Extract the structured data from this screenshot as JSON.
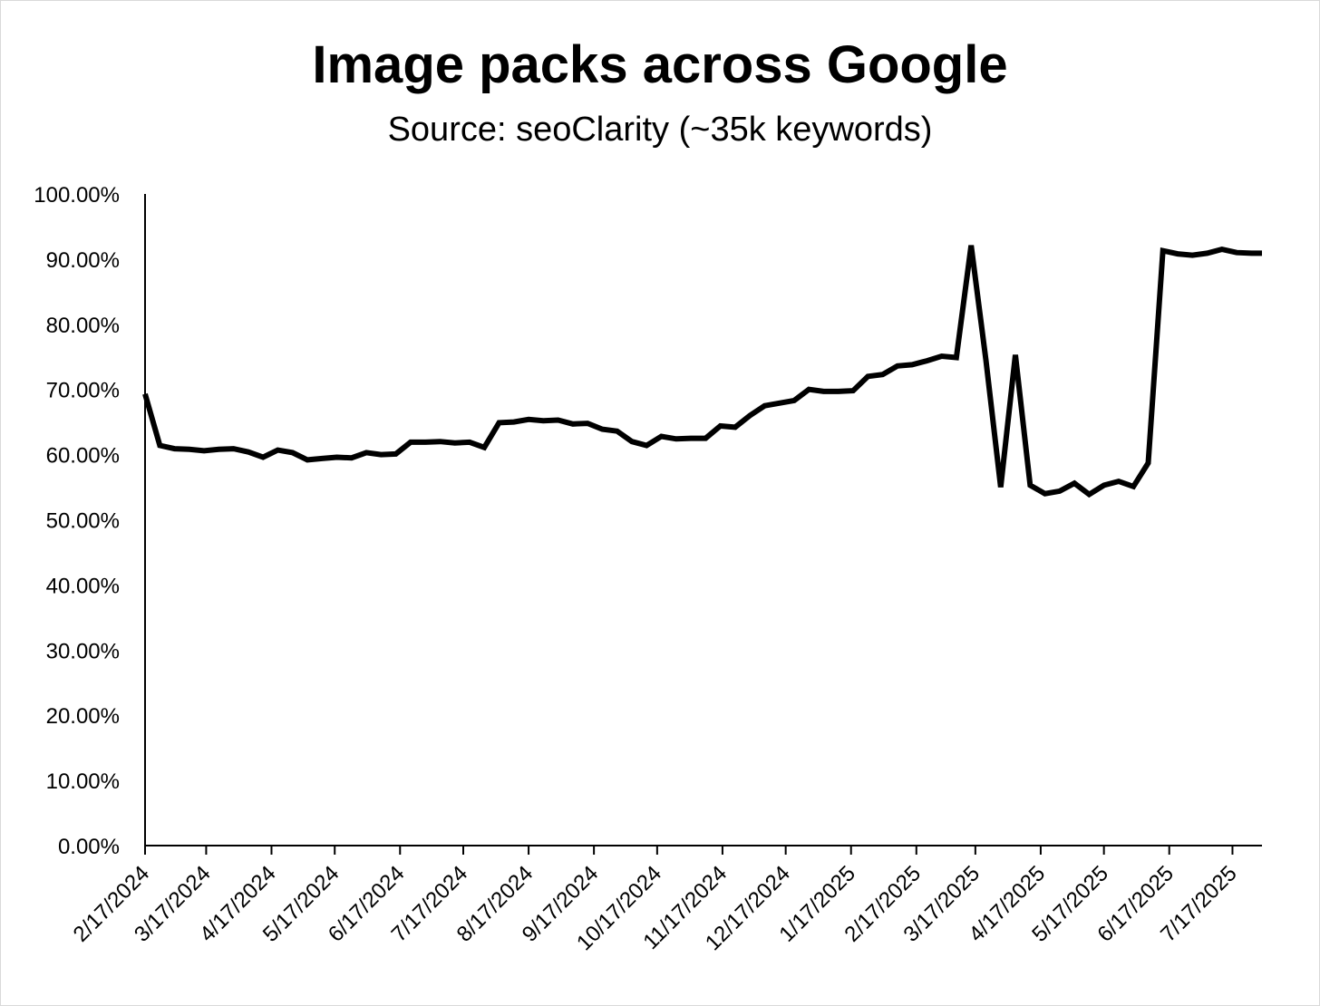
{
  "chart_data": {
    "type": "line",
    "title": "Image packs across Google",
    "subtitle": "Source: seoClarity (~35k keywords)",
    "xlabel": "",
    "ylabel": "",
    "ylim": [
      0,
      1
    ],
    "y_ticks": [
      0,
      0.1,
      0.2,
      0.3,
      0.4,
      0.5,
      0.6,
      0.7,
      0.8,
      0.9,
      1.0
    ],
    "y_tick_labels": [
      "0.00%",
      "10.00%",
      "20.00%",
      "30.00%",
      "40.00%",
      "50.00%",
      "60.00%",
      "70.00%",
      "80.00%",
      "90.00%",
      "100.00%"
    ],
    "x_range": [
      "2024-02-17",
      "2025-07-31"
    ],
    "x_ticks": [
      "2024-02-17",
      "2024-03-17",
      "2024-04-17",
      "2024-05-17",
      "2024-06-17",
      "2024-07-17",
      "2024-08-17",
      "2024-09-17",
      "2024-10-17",
      "2024-11-17",
      "2024-12-17",
      "2025-01-17",
      "2025-02-17",
      "2025-03-17",
      "2025-04-17",
      "2025-05-17",
      "2025-06-17",
      "2025-07-17"
    ],
    "x_tick_labels": [
      "2/17/2024",
      "3/17/2024",
      "4/17/2024",
      "5/17/2024",
      "6/17/2024",
      "7/17/2024",
      "8/17/2024",
      "9/17/2024",
      "10/17/2024",
      "11/17/2024",
      "12/17/2024",
      "1/17/2025",
      "2/17/2025",
      "3/17/2025",
      "4/17/2025",
      "5/17/2025",
      "6/17/2025",
      "7/17/2025"
    ],
    "grid": false,
    "legend": "none",
    "line_color": "#000000",
    "series": [
      {
        "x": [
          "2024-02-17",
          "2024-02-24",
          "2024-03-02",
          "2024-03-09",
          "2024-03-16",
          "2024-03-23",
          "2024-03-30",
          "2024-04-06",
          "2024-04-13",
          "2024-04-20",
          "2024-04-27",
          "2024-05-04",
          "2024-05-11",
          "2024-05-18",
          "2024-05-25",
          "2024-06-01",
          "2024-06-08",
          "2024-06-15",
          "2024-06-22",
          "2024-06-29",
          "2024-07-06",
          "2024-07-13",
          "2024-07-20",
          "2024-07-27",
          "2024-08-03",
          "2024-08-10",
          "2024-08-17",
          "2024-08-24",
          "2024-08-31",
          "2024-09-07",
          "2024-09-14",
          "2024-09-21",
          "2024-09-28",
          "2024-10-05",
          "2024-10-12",
          "2024-10-19",
          "2024-10-26",
          "2024-11-02",
          "2024-11-09",
          "2024-11-16",
          "2024-11-23",
          "2024-11-30",
          "2024-12-07",
          "2024-12-14",
          "2024-12-21",
          "2024-12-28",
          "2025-01-04",
          "2025-01-11",
          "2025-01-18",
          "2025-01-25",
          "2025-02-01",
          "2025-02-08",
          "2025-02-15",
          "2025-02-22",
          "2025-03-01",
          "2025-03-08",
          "2025-03-15",
          "2025-03-22",
          "2025-03-29",
          "2025-04-05",
          "2025-04-12",
          "2025-04-19",
          "2025-04-26",
          "2025-05-03",
          "2025-05-10",
          "2025-05-17",
          "2025-05-24",
          "2025-05-31",
          "2025-06-07",
          "2025-06-14",
          "2025-06-21",
          "2025-06-28",
          "2025-07-05",
          "2025-07-12",
          "2025-07-19",
          "2025-07-26",
          "2025-07-31"
        ],
        "values": [
          0.693,
          0.614,
          0.609,
          0.608,
          0.606,
          0.608,
          0.609,
          0.604,
          0.596,
          0.607,
          0.603,
          0.592,
          0.594,
          0.596,
          0.595,
          0.603,
          0.6,
          0.601,
          0.619,
          0.619,
          0.62,
          0.618,
          0.619,
          0.611,
          0.649,
          0.65,
          0.654,
          0.652,
          0.653,
          0.647,
          0.648,
          0.639,
          0.636,
          0.62,
          0.614,
          0.628,
          0.624,
          0.625,
          0.625,
          0.644,
          0.642,
          0.66,
          0.675,
          0.679,
          0.683,
          0.7,
          0.697,
          0.697,
          0.698,
          0.72,
          0.723,
          0.736,
          0.738,
          0.744,
          0.751,
          0.749,
          0.921,
          0.745,
          0.55,
          0.753,
          0.553,
          0.54,
          0.544,
          0.556,
          0.539,
          0.553,
          0.559,
          0.551,
          0.587,
          0.913,
          0.908,
          0.906,
          0.909,
          0.915,
          0.91,
          0.909,
          0.909
        ]
      }
    ]
  }
}
